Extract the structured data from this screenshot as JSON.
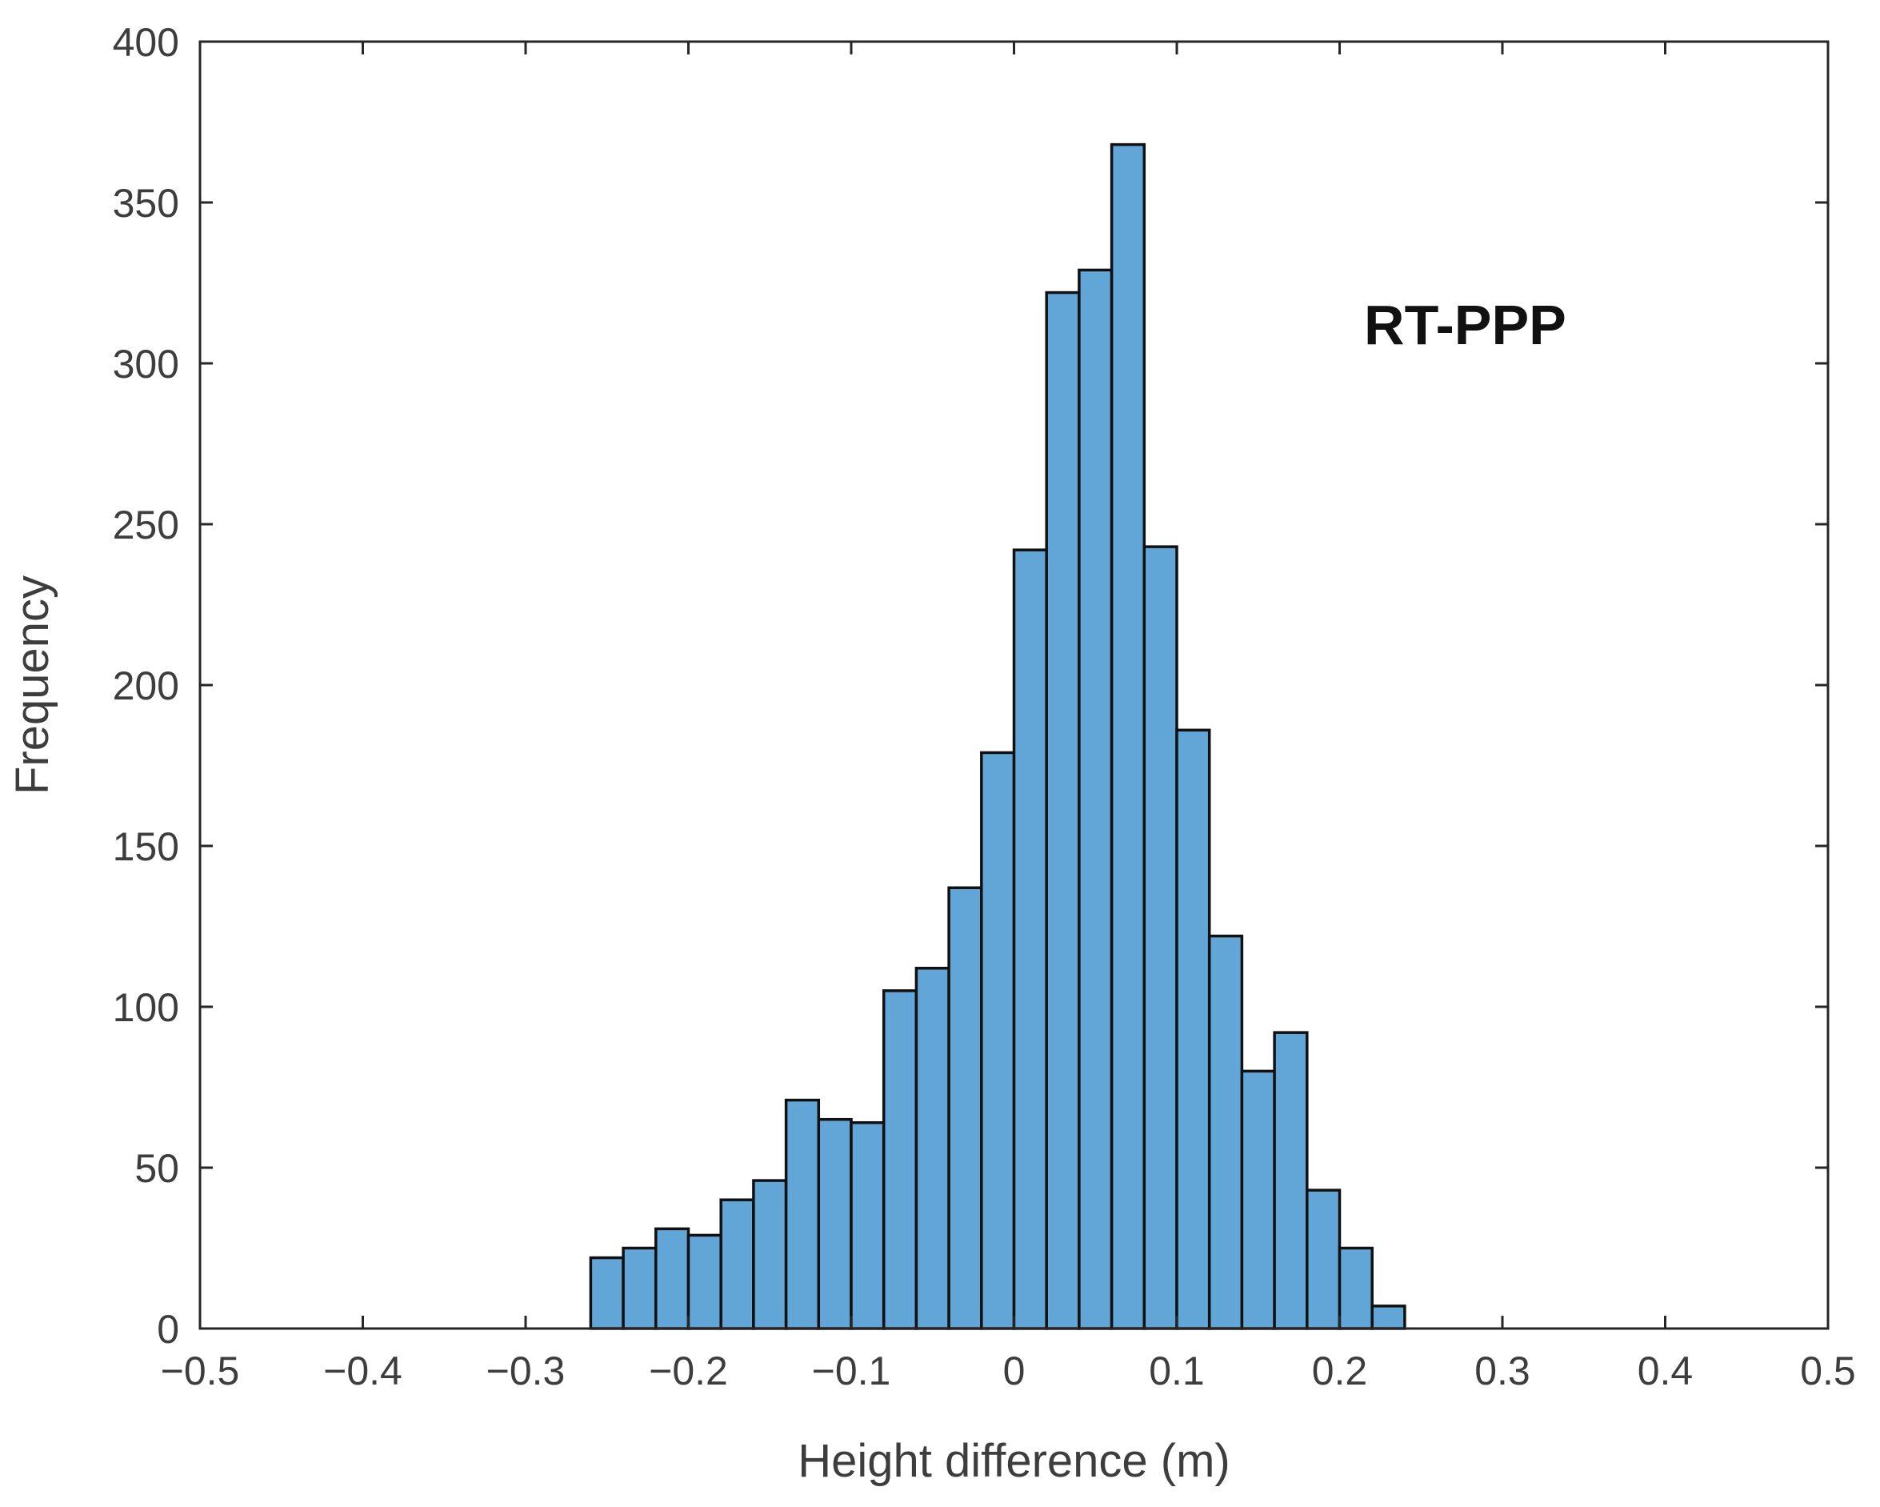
{
  "chart_data": {
    "type": "bar",
    "annotation": "RT-PPP",
    "xlabel": "Height difference (m)",
    "ylabel": "Frequency",
    "xlim": [
      -0.5,
      0.5
    ],
    "ylim": [
      0,
      400
    ],
    "xticks": [
      -0.5,
      -0.4,
      -0.3,
      -0.2,
      -0.1,
      0,
      0.1,
      0.2,
      0.3,
      0.4,
      0.5
    ],
    "xtick_labels": [
      "−0.5",
      "−0.4",
      "−0.3",
      "−0.2",
      "−0.1",
      "0",
      "0.1",
      "0.2",
      "0.3",
      "0.4",
      "0.5"
    ],
    "yticks": [
      0,
      50,
      100,
      150,
      200,
      250,
      300,
      350,
      400
    ],
    "ytick_labels": [
      "0",
      "50",
      "100",
      "150",
      "200",
      "250",
      "300",
      "350",
      "400"
    ],
    "bin_edges": [
      -0.26,
      -0.24,
      -0.22,
      -0.2,
      -0.18,
      -0.16,
      -0.14,
      -0.12,
      -0.1,
      -0.08,
      -0.06,
      -0.04,
      -0.02,
      0.0,
      0.02,
      0.04,
      0.06,
      0.08,
      0.1,
      0.12,
      0.14,
      0.16,
      0.18,
      0.2,
      0.22,
      0.24
    ],
    "values": [
      22,
      25,
      31,
      29,
      40,
      46,
      71,
      65,
      64,
      105,
      112,
      137,
      179,
      242,
      322,
      329,
      368,
      243,
      186,
      122,
      80,
      92,
      43,
      25,
      7
    ],
    "bar_color": "#62a6d8",
    "edge_color": "#111111",
    "grid": false,
    "box": true
  }
}
